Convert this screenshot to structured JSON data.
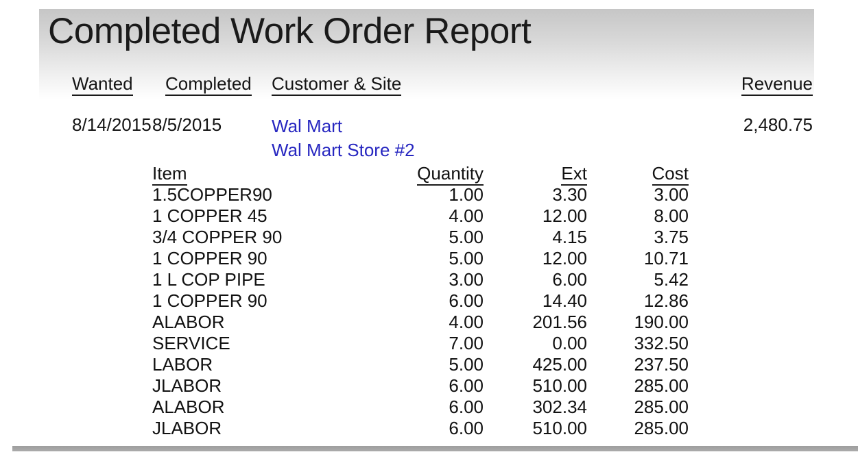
{
  "report": {
    "title": "Completed Work Order Report",
    "columns": {
      "wanted": "Wanted",
      "completed": "Completed",
      "customer_site": "Customer & Site",
      "revenue": "Revenue"
    },
    "order": {
      "wanted_date": "8/14/2015",
      "completed_date": "8/5/2015",
      "customer": "Wal Mart",
      "site": "Wal Mart Store #2",
      "revenue": "2,480.75"
    },
    "items_table": {
      "columns": {
        "item": "Item",
        "quantity": "Quantity",
        "ext": "Ext",
        "cost": "Cost"
      },
      "rows": [
        {
          "item": "1.5COPPER90",
          "quantity": "1.00",
          "ext": "3.30",
          "cost": "3.00"
        },
        {
          "item": "1 COPPER 45",
          "quantity": "4.00",
          "ext": "12.00",
          "cost": "8.00"
        },
        {
          "item": "3/4 COPPER 90",
          "quantity": "5.00",
          "ext": "4.15",
          "cost": "3.75"
        },
        {
          "item": "1 COPPER 90",
          "quantity": "5.00",
          "ext": "12.00",
          "cost": "10.71"
        },
        {
          "item": "1 L COP PIPE",
          "quantity": "3.00",
          "ext": "6.00",
          "cost": "5.42"
        },
        {
          "item": "1 COPPER 90",
          "quantity": "6.00",
          "ext": "14.40",
          "cost": "12.86"
        },
        {
          "item": "ALABOR",
          "quantity": "4.00",
          "ext": "201.56",
          "cost": "190.00"
        },
        {
          "item": "SERVICE",
          "quantity": "7.00",
          "ext": "0.00",
          "cost": "332.50"
        },
        {
          "item": "LABOR",
          "quantity": "5.00",
          "ext": "425.00",
          "cost": "237.50"
        },
        {
          "item": "JLABOR",
          "quantity": "6.00",
          "ext": "510.00",
          "cost": "285.00"
        },
        {
          "item": "ALABOR",
          "quantity": "6.00",
          "ext": "302.34",
          "cost": "285.00"
        },
        {
          "item": "JLABOR",
          "quantity": "6.00",
          "ext": "510.00",
          "cost": "285.00"
        }
      ]
    },
    "colors": {
      "customer_link": "#2626c0",
      "body_text": "#151515",
      "title_band_top": "#c6c6c6",
      "scrollbar": "#a6a6a6"
    }
  }
}
